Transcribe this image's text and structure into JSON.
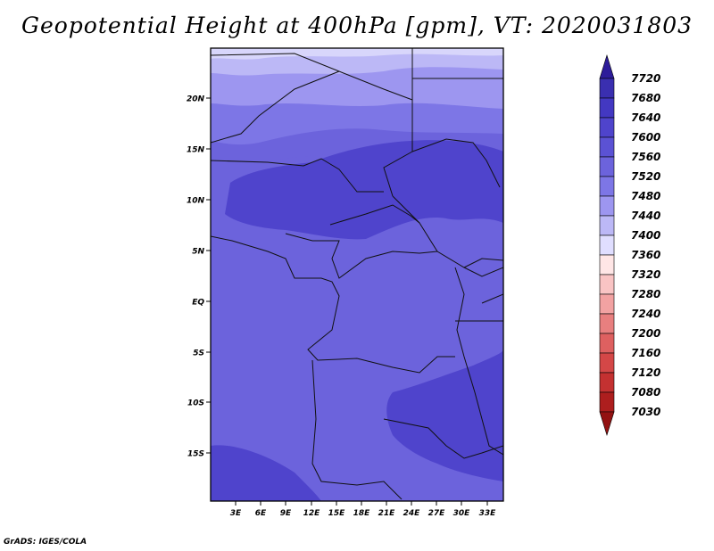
{
  "title": "Geopotential Height at 400hPa [gpm], VT: 2020031803",
  "credit": "GrADS: IGES/COLA",
  "map": {
    "lat_labels": [
      "20N",
      "15N",
      "10N",
      "5N",
      "EQ",
      "5S",
      "10S",
      "15S"
    ],
    "lon_labels": [
      "3E",
      "6E",
      "9E",
      "12E",
      "15E",
      "18E",
      "21E",
      "24E",
      "27E",
      "30E",
      "33E"
    ]
  },
  "colorbar": {
    "levels": [
      "7720",
      "7680",
      "7640",
      "7600",
      "7560",
      "7520",
      "7480",
      "7440",
      "7400",
      "7360",
      "7320",
      "7280",
      "7240",
      "7200",
      "7160",
      "7120",
      "7080",
      "7030"
    ],
    "colors": [
      "#2d1c9a",
      "#3a2fb0",
      "#4338c2",
      "#4f44cc",
      "#5b52d4",
      "#6c63dc",
      "#7d76e6",
      "#9d96f0",
      "#bcb8f6",
      "#e0deff",
      "#ffe6e6",
      "#f9c4c4",
      "#f2a2a2",
      "#e87f7f",
      "#de6060",
      "#d44747",
      "#c43131",
      "#ad1e1e",
      "#931212"
    ]
  }
}
